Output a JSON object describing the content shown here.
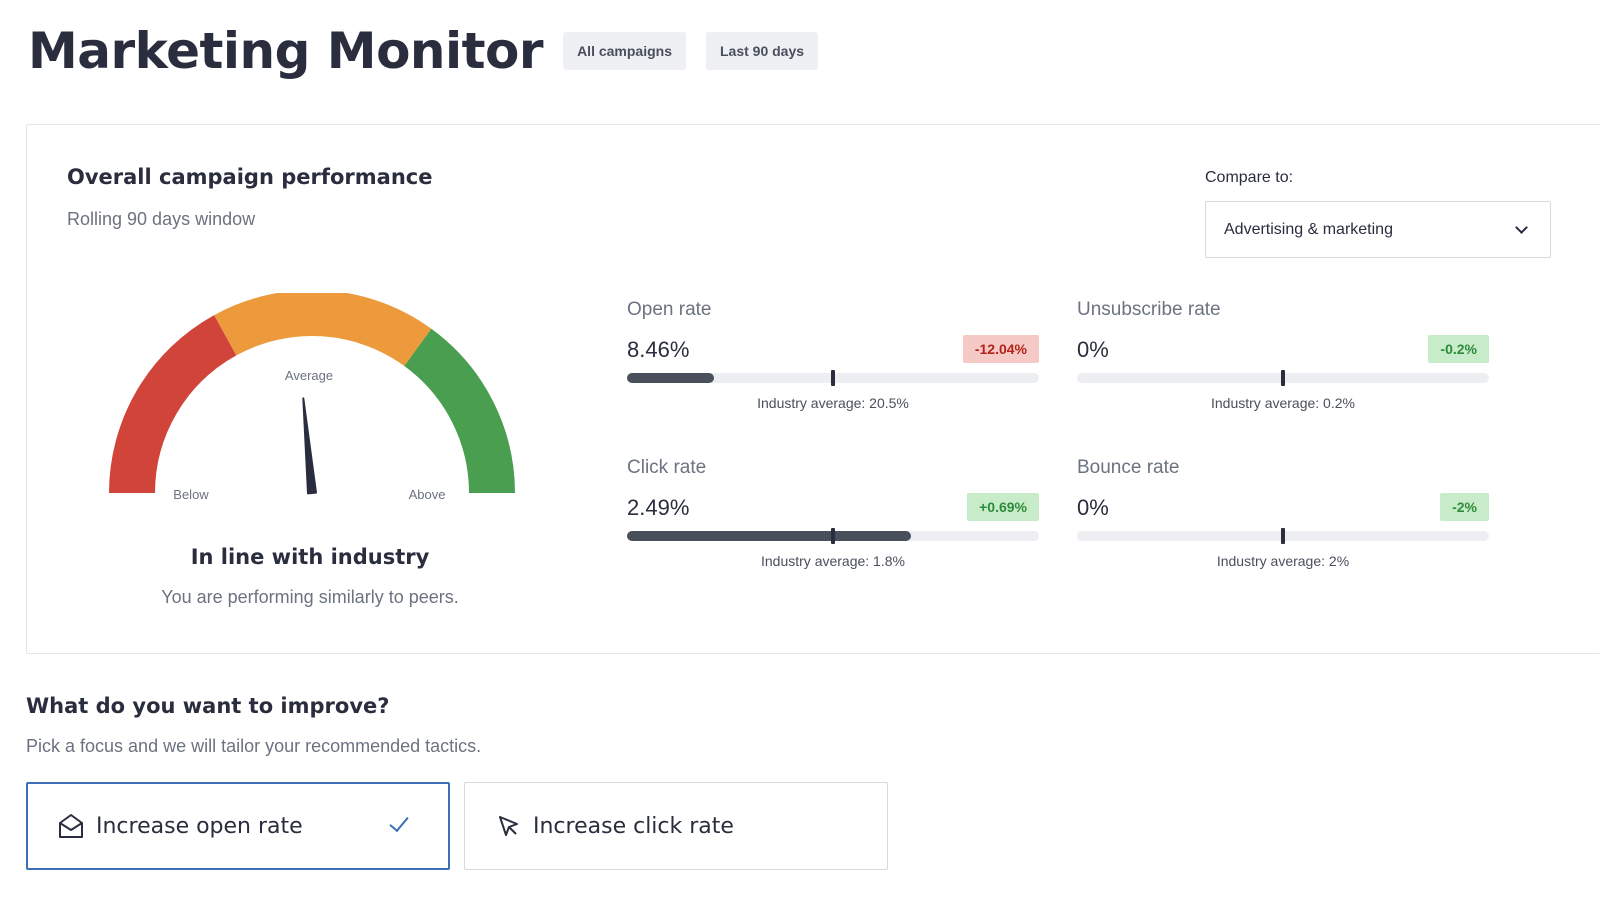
{
  "header": {
    "title": "Marketing Monitor",
    "filters": [
      "All campaigns",
      "Last 90 days"
    ]
  },
  "performance": {
    "title": "Overall campaign performance",
    "subtitle": "Rolling 90 days window",
    "compare": {
      "label": "Compare to:",
      "value": "Advertising & marketing"
    },
    "gauge": {
      "labels": {
        "below": "Below",
        "average": "Average",
        "above": "Above"
      },
      "needle_position": 0.47,
      "colors": {
        "below": "#d0443a",
        "average": "#ec9a3c",
        "above": "#4a9e4f",
        "needle": "#2a2d3e"
      },
      "status": "In line with industry",
      "description": "You are performing similarly to peers."
    },
    "metrics": [
      {
        "label": "Open rate",
        "value": "8.46%",
        "delta": "-12.04%",
        "delta_type": "negative",
        "industry_average": "Industry average: 20.5%",
        "fill": 0.21
      },
      {
        "label": "Unsubscribe rate",
        "value": "0%",
        "delta": "-0.2%",
        "delta_type": "positive",
        "industry_average": "Industry average: 0.2%",
        "fill": 0
      },
      {
        "label": "Click rate",
        "value": "2.49%",
        "delta": "+0.69%",
        "delta_type": "positive",
        "industry_average": "Industry average: 1.8%",
        "fill": 0.69
      },
      {
        "label": "Bounce rate",
        "value": "0%",
        "delta": "-2%",
        "delta_type": "positive",
        "industry_average": "Industry average: 2%",
        "fill": 0
      }
    ]
  },
  "improve": {
    "title": "What do you want to improve?",
    "description": "Pick a focus and we will tailor your recommended tactics.",
    "options": [
      {
        "label": "Increase open rate",
        "icon": "envelope-open-icon",
        "selected": true
      },
      {
        "label": "Increase click rate",
        "icon": "cursor-click-icon",
        "selected": false
      }
    ]
  }
}
